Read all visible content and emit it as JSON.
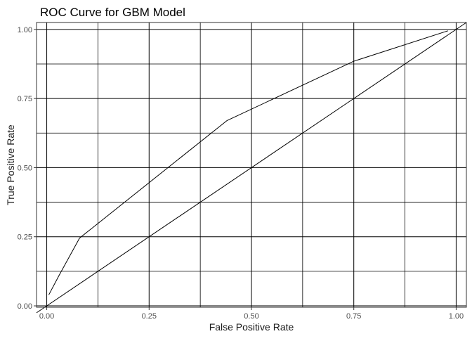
{
  "chart_data": {
    "type": "line",
    "title": "ROC Curve for GBM Model",
    "xlabel": "False Positive Rate",
    "ylabel": "True Positive Rate",
    "xlim": [
      -0.025,
      1.025
    ],
    "ylim": [
      -0.005,
      1.025
    ],
    "x_ticks": [
      0.0,
      0.25,
      0.5,
      0.75,
      1.0
    ],
    "x_tick_labels": [
      "0.00",
      "0.25",
      "0.50",
      "0.75",
      "1.00"
    ],
    "y_ticks": [
      0.0,
      0.25,
      0.5,
      0.75,
      1.0
    ],
    "y_tick_labels": [
      "0.00",
      "0.25",
      "0.50",
      "0.75",
      "1.00"
    ],
    "x_minor": [
      0.125,
      0.375,
      0.625,
      0.875
    ],
    "y_minor": [
      0.125,
      0.375,
      0.625,
      0.875
    ],
    "grid": true,
    "legend": "none",
    "series": [
      {
        "color": "#000000",
        "x": [
          0.005,
          0.03,
          0.08,
          0.44,
          0.75,
          0.98
        ],
        "y": [
          0.04,
          0.11,
          0.245,
          0.67,
          0.885,
          0.995
        ]
      },
      {
        "color": "#000000",
        "x": [
          -0.025,
          1.025
        ],
        "y": [
          -0.025,
          1.025
        ]
      }
    ]
  }
}
